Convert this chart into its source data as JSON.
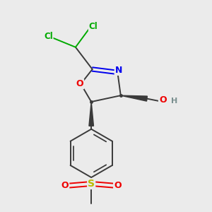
{
  "bg_color": "#ebebeb",
  "atom_colors": {
    "C": "#3a3a3a",
    "N": "#0000ee",
    "O": "#ee0000",
    "S": "#bbbb00",
    "Cl": "#00aa00",
    "H": "#7a9090"
  },
  "bond_color": "#3a3a3a",
  "figsize": [
    3.0,
    3.0
  ],
  "dpi": 100,
  "xlim": [
    0,
    10
  ],
  "ylim": [
    0,
    10
  ]
}
